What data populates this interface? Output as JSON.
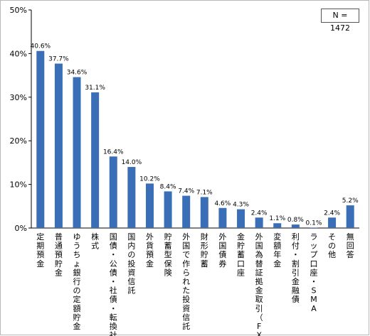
{
  "chart_data": {
    "type": "bar",
    "categories": [
      "定期預金",
      "普通預貯金",
      "ゆうちょ銀行の定額貯金",
      "株式",
      "国債・公債・社債・転換社債",
      "国内の投資信託",
      "外貨預金",
      "貯蓄型保険",
      "外国で作られた投資信託",
      "財形貯蓄",
      "外国債券",
      "金貯蓄口座",
      "外国為替証拠金取引（FX）",
      "変額年金",
      "利付・割引金融債",
      "ラップ口座・SMA",
      "その他",
      "無回答"
    ],
    "values": [
      40.6,
      37.7,
      34.6,
      31.1,
      16.4,
      14.0,
      10.2,
      8.4,
      7.4,
      7.1,
      4.6,
      4.3,
      2.4,
      1.1,
      0.8,
      0.1,
      2.4,
      5.2
    ],
    "value_labels": [
      "40.6%",
      "37.7%",
      "34.6%",
      "31.1%",
      "16.4%",
      "14.0%",
      "10.2%",
      "8.4%",
      "7.4%",
      "7.1%",
      "4.6%",
      "4.3%",
      "2.4%",
      "1.1%",
      "0.8%",
      "0.1%",
      "2.4%",
      "5.2%"
    ],
    "yticks": [
      0,
      10,
      20,
      30,
      40,
      50
    ],
    "ytick_labels": [
      "0%",
      "10%",
      "20%",
      "30%",
      "40%",
      "50%"
    ],
    "ylim": [
      0,
      50
    ],
    "title": "",
    "xlabel": "",
    "ylabel": "",
    "grid": false,
    "bar_color": "#3a6fb7"
  },
  "annotation": {
    "sample_size": "N = 1472"
  }
}
